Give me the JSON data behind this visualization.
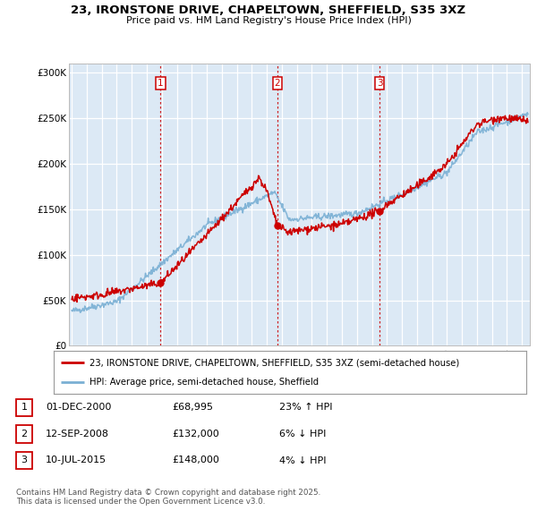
{
  "title": "23, IRONSTONE DRIVE, CHAPELTOWN, SHEFFIELD, S35 3XZ",
  "subtitle": "Price paid vs. HM Land Registry's House Price Index (HPI)",
  "legend_line1": "23, IRONSTONE DRIVE, CHAPELTOWN, SHEFFIELD, S35 3XZ (semi-detached house)",
  "legend_line2": "HPI: Average price, semi-detached house, Sheffield",
  "footer_line1": "Contains HM Land Registry data © Crown copyright and database right 2025.",
  "footer_line2": "This data is licensed under the Open Government Licence v3.0.",
  "sale_labels": [
    {
      "num": "1",
      "date": "01-DEC-2000",
      "price": "£68,995",
      "hpi": "23% ↑ HPI"
    },
    {
      "num": "2",
      "date": "12-SEP-2008",
      "price": "£132,000",
      "hpi": "6% ↓ HPI"
    },
    {
      "num": "3",
      "date": "10-JUL-2015",
      "price": "£148,000",
      "hpi": "4% ↓ HPI"
    }
  ],
  "sale_years": [
    2000.92,
    2008.7,
    2015.52
  ],
  "sale_prices": [
    68995,
    132000,
    148000
  ],
  "red_color": "#cc0000",
  "blue_color": "#7ab0d4",
  "vline_color": "#cc0000",
  "grid_color": "#bbbbbb",
  "bg_color": "#ffffff",
  "chart_bg": "#dce9f5",
  "ylim": [
    0,
    310000
  ],
  "xlim": [
    1994.8,
    2025.5
  ],
  "yticks": [
    0,
    50000,
    100000,
    150000,
    200000,
    250000,
    300000
  ],
  "ytick_labels": [
    "£0",
    "£50K",
    "£100K",
    "£150K",
    "£200K",
    "£250K",
    "£300K"
  ],
  "xticks": [
    1995,
    1996,
    1997,
    1998,
    1999,
    2000,
    2001,
    2002,
    2003,
    2004,
    2005,
    2006,
    2007,
    2008,
    2009,
    2010,
    2011,
    2012,
    2013,
    2014,
    2015,
    2016,
    2017,
    2018,
    2019,
    2020,
    2021,
    2022,
    2023,
    2024,
    2025
  ]
}
